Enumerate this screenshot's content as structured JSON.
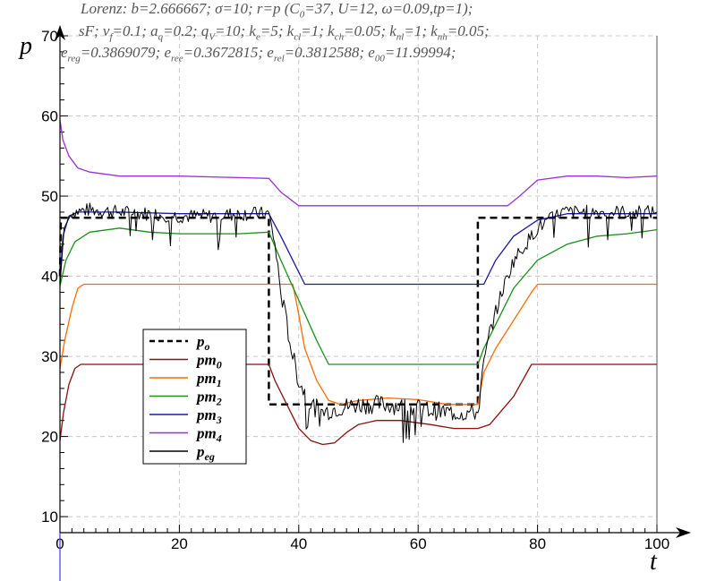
{
  "header": {
    "line1": [
      "Lorenz: b=2.666667; σ=10; r=p (C",
      "0",
      "=37, U=12, ω=0.09,tp=1);"
    ],
    "line2": [
      "sF; v",
      "f",
      "=0.1; a",
      "q",
      "=0.2; q",
      "V",
      "=10; k",
      "e",
      "=5; k",
      "cl",
      "=1; k",
      "ch",
      "=0.05; k",
      "nl",
      "=1; k",
      "nh",
      "=0.05;"
    ],
    "line3": [
      "e",
      "reg",
      "=0.3869079; e",
      "ree",
      "=0.3672815; e",
      "rel",
      "=0.3812588; e",
      "00",
      "=11.99994;"
    ]
  },
  "chart_data": {
    "type": "line",
    "xlabel": "t",
    "ylabel": "p",
    "xlim": [
      0,
      100
    ],
    "ylim": [
      8,
      70
    ],
    "xticks": [
      0,
      20,
      40,
      60,
      80,
      100
    ],
    "yticks": [
      10,
      20,
      30,
      40,
      50,
      60,
      70
    ],
    "grid": true,
    "legend_position": "lower-left",
    "series": [
      {
        "name": "p",
        "sub": "o",
        "color": "#000000",
        "style": "dashed",
        "width": 2.5,
        "points": [
          [
            0,
            40
          ],
          [
            0.15,
            47.3
          ],
          [
            35,
            47.3
          ],
          [
            35,
            24
          ],
          [
            70,
            24
          ],
          [
            70,
            47.3
          ],
          [
            100,
            47.3
          ]
        ]
      },
      {
        "name": "pm",
        "sub": "0",
        "color": "#8b1010",
        "style": "solid",
        "width": 1.3,
        "points": [
          [
            0,
            19.5
          ],
          [
            0.6,
            23
          ],
          [
            1.5,
            26.5
          ],
          [
            2.5,
            28.5
          ],
          [
            3.5,
            29
          ],
          [
            35,
            29
          ],
          [
            36,
            27
          ],
          [
            38,
            24
          ],
          [
            40,
            21
          ],
          [
            42,
            19.5
          ],
          [
            44,
            19
          ],
          [
            46,
            19.2
          ],
          [
            48,
            20.5
          ],
          [
            50,
            21.5
          ],
          [
            53,
            22
          ],
          [
            57,
            22
          ],
          [
            62,
            21.5
          ],
          [
            66,
            21
          ],
          [
            70,
            21
          ],
          [
            72,
            21.5
          ],
          [
            76,
            25
          ],
          [
            79,
            29
          ],
          [
            100,
            29
          ]
        ]
      },
      {
        "name": "pm",
        "sub": "1",
        "color": "#ff6a00",
        "style": "solid",
        "width": 1.3,
        "points": [
          [
            0,
            28.5
          ],
          [
            0.8,
            32
          ],
          [
            2,
            36
          ],
          [
            3,
            38.5
          ],
          [
            4,
            39
          ],
          [
            39,
            39
          ],
          [
            39.8,
            36
          ],
          [
            41,
            31
          ],
          [
            43,
            27
          ],
          [
            45,
            24.5
          ],
          [
            47,
            24
          ],
          [
            50,
            24.5
          ],
          [
            55,
            24.8
          ],
          [
            60,
            24.6
          ],
          [
            65,
            24
          ],
          [
            70,
            24
          ],
          [
            71,
            28
          ],
          [
            73,
            31
          ],
          [
            76,
            34.5
          ],
          [
            79,
            38
          ],
          [
            80,
            39
          ],
          [
            100,
            39
          ]
        ]
      },
      {
        "name": "pm",
        "sub": "2",
        "color": "#1a8f1a",
        "style": "solid",
        "width": 1.3,
        "points": [
          [
            0,
            38.8
          ],
          [
            1,
            42
          ],
          [
            2.5,
            44.3
          ],
          [
            5,
            45.5
          ],
          [
            10,
            46
          ],
          [
            15,
            45.5
          ],
          [
            20,
            45.3
          ],
          [
            25,
            45.3
          ],
          [
            30,
            45.3
          ],
          [
            35,
            45.5
          ],
          [
            37,
            42
          ],
          [
            40,
            37
          ],
          [
            43,
            32
          ],
          [
            45,
            29
          ],
          [
            70,
            29
          ],
          [
            71,
            31
          ],
          [
            73,
            34
          ],
          [
            76,
            38.5
          ],
          [
            80,
            42
          ],
          [
            85,
            44
          ],
          [
            90,
            45
          ],
          [
            95,
            45.3
          ],
          [
            100,
            45.8
          ]
        ]
      },
      {
        "name": "pm",
        "sub": "3",
        "color": "#1a1aa0",
        "style": "solid",
        "width": 1.3,
        "points": [
          [
            0,
            39
          ],
          [
            0.5,
            45
          ],
          [
            1.5,
            47.5
          ],
          [
            3,
            48
          ],
          [
            10,
            48
          ],
          [
            20,
            47.8
          ],
          [
            30,
            47.8
          ],
          [
            35,
            47.8
          ],
          [
            37,
            45
          ],
          [
            39,
            42
          ],
          [
            41,
            39
          ],
          [
            71,
            39
          ],
          [
            73,
            42
          ],
          [
            76,
            45
          ],
          [
            80,
            47
          ],
          [
            85,
            47.8
          ],
          [
            100,
            47.8
          ]
        ]
      },
      {
        "name": "pm",
        "sub": "4",
        "color": "#9a30d8",
        "style": "solid",
        "width": 1.3,
        "points": [
          [
            0,
            59.5
          ],
          [
            0.5,
            57
          ],
          [
            1.5,
            55
          ],
          [
            3,
            53.5
          ],
          [
            5,
            53
          ],
          [
            10,
            52.5
          ],
          [
            20,
            52.5
          ],
          [
            30,
            52.3
          ],
          [
            35,
            52.2
          ],
          [
            37,
            50.5
          ],
          [
            40,
            48.8
          ],
          [
            75,
            48.8
          ],
          [
            77,
            50
          ],
          [
            80,
            52
          ],
          [
            85,
            52.5
          ],
          [
            90,
            52.5
          ],
          [
            95,
            52.3
          ],
          [
            100,
            52.5
          ]
        ]
      },
      {
        "name": "p",
        "sub": "eg",
        "color": "#000000",
        "style": "noisy",
        "width": 1,
        "points": [
          [
            0,
            39
          ],
          [
            0.7,
            46
          ],
          [
            2,
            48
          ],
          [
            5,
            48.3
          ],
          [
            10,
            48
          ],
          [
            15,
            47.8
          ],
          [
            20,
            47.5
          ],
          [
            25,
            47.5
          ],
          [
            30,
            47.8
          ],
          [
            35,
            47.8
          ],
          [
            36,
            44
          ],
          [
            37,
            38
          ],
          [
            38,
            34
          ],
          [
            39,
            30
          ],
          [
            40,
            27
          ],
          [
            42,
            24
          ],
          [
            44,
            23
          ],
          [
            46,
            23.5
          ],
          [
            50,
            24
          ],
          [
            55,
            24
          ],
          [
            60,
            23.5
          ],
          [
            65,
            23
          ],
          [
            70,
            23
          ],
          [
            71,
            29
          ],
          [
            72,
            33
          ],
          [
            74,
            38
          ],
          [
            76,
            42
          ],
          [
            78,
            44
          ],
          [
            80,
            46
          ],
          [
            84,
            48
          ],
          [
            90,
            48
          ],
          [
            100,
            48
          ]
        ]
      }
    ]
  }
}
